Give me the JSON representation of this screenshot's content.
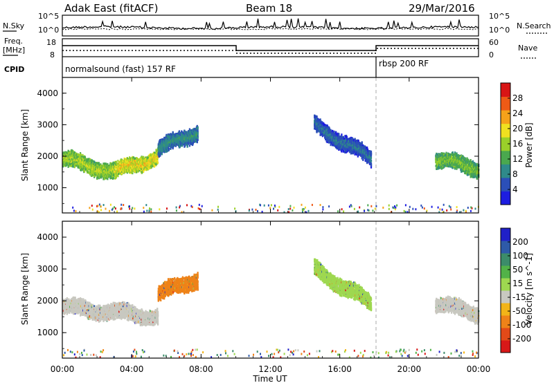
{
  "header": {
    "radar": "Adak East (fitACF)",
    "beam": "Beam 18",
    "date": "29/Mar/2016"
  },
  "noise_panel": {
    "left_label": "N.Sky",
    "right_label": "N.Search",
    "left_ticks": [
      "10^5",
      "10^0"
    ],
    "right_ticks": [
      "10^5",
      "10^0"
    ]
  },
  "freq_panel": {
    "left_label_1": "Freq.",
    "left_label_2": "[MHz]",
    "left_ticks": [
      "18",
      "8"
    ],
    "right_label": "Nave",
    "right_ticks": [
      "60",
      "0"
    ]
  },
  "cpid": {
    "label": "CPID",
    "segments": [
      {
        "name": "normalsound (fast) 157 RF",
        "start_hour": 0
      },
      {
        "name": "rbsp 200 RF",
        "start_hour": 18
      }
    ]
  },
  "x_axis": {
    "title": "Time UT",
    "ticks": [
      "00:00",
      "04:00",
      "08:00",
      "12:00",
      "16:00",
      "20:00",
      "00:00"
    ]
  },
  "chart_data": [
    {
      "type": "heatmap",
      "name": "power",
      "ylabel": "Slant Range [km]",
      "xlabel": "Time UT",
      "xlim_hours": [
        0,
        24
      ],
      "ylim_km": [
        200,
        4500
      ],
      "yticks": [
        "1000",
        "2000",
        "3000",
        "4000"
      ],
      "colorbar": {
        "label": "Power [dB]",
        "ticks": [
          "4",
          "8",
          "12",
          "16",
          "20",
          "24",
          "28"
        ],
        "colors": [
          "#1d1de0",
          "#2b4fb8",
          "#2f8a8a",
          "#4aa84e",
          "#9ad02a",
          "#f0e020",
          "#f5a21a",
          "#ee5a16",
          "#d81515"
        ]
      },
      "echo_regions": [
        {
          "t_start": 0.0,
          "t_end": 3.0,
          "range_center_km": [
            1900,
            1500
          ],
          "intensity_db": [
            14,
            20
          ]
        },
        {
          "t_start": 3.0,
          "t_end": 5.5,
          "range_center_km": [
            1500,
            2000
          ],
          "intensity_db": [
            16,
            24
          ]
        },
        {
          "t_start": 5.5,
          "t_end": 7.8,
          "range_center_km": [
            2200,
            2800
          ],
          "intensity_db": [
            8,
            12
          ]
        },
        {
          "t_start": 14.5,
          "t_end": 17.8,
          "range_center_km": [
            3000,
            1900
          ],
          "intensity_db": [
            6,
            10
          ]
        },
        {
          "t_start": 21.5,
          "t_end": 24.0,
          "range_center_km": [
            1900,
            1600
          ],
          "intensity_db": [
            12,
            18
          ]
        }
      ]
    },
    {
      "type": "heatmap",
      "name": "velocity",
      "ylabel": "Slant Range [km]",
      "xlabel": "Time UT",
      "xlim_hours": [
        0,
        24
      ],
      "ylim_km": [
        200,
        4500
      ],
      "yticks": [
        "1000",
        "2000",
        "3000",
        "4000"
      ],
      "colorbar": {
        "label": "Velocity [m s^-1]",
        "ticks": [
          "200",
          "100",
          "50",
          "15",
          "-15",
          "-50",
          "-100",
          "-200"
        ],
        "colors": [
          "#2020c8",
          "#2e5aa8",
          "#3c8c6a",
          "#52b248",
          "#9ed850",
          "#c8c8c0",
          "#f2b418",
          "#ee8218",
          "#e24a18",
          "#d81818"
        ]
      },
      "echo_regions": [
        {
          "t_start": 0.0,
          "t_end": 5.5,
          "range_center_km": [
            1800,
            1500
          ],
          "velocity_ms": [
            -15,
            15
          ]
        },
        {
          "t_start": 5.5,
          "t_end": 7.8,
          "range_center_km": [
            2200,
            2700
          ],
          "velocity_ms": [
            -100,
            -50
          ]
        },
        {
          "t_start": 14.5,
          "t_end": 17.8,
          "range_center_km": [
            3000,
            1900
          ],
          "velocity_ms": [
            15,
            50
          ]
        },
        {
          "t_start": 21.5,
          "t_end": 24.0,
          "range_center_km": [
            1900,
            1600
          ],
          "velocity_ms": [
            -15,
            15
          ]
        }
      ]
    }
  ]
}
